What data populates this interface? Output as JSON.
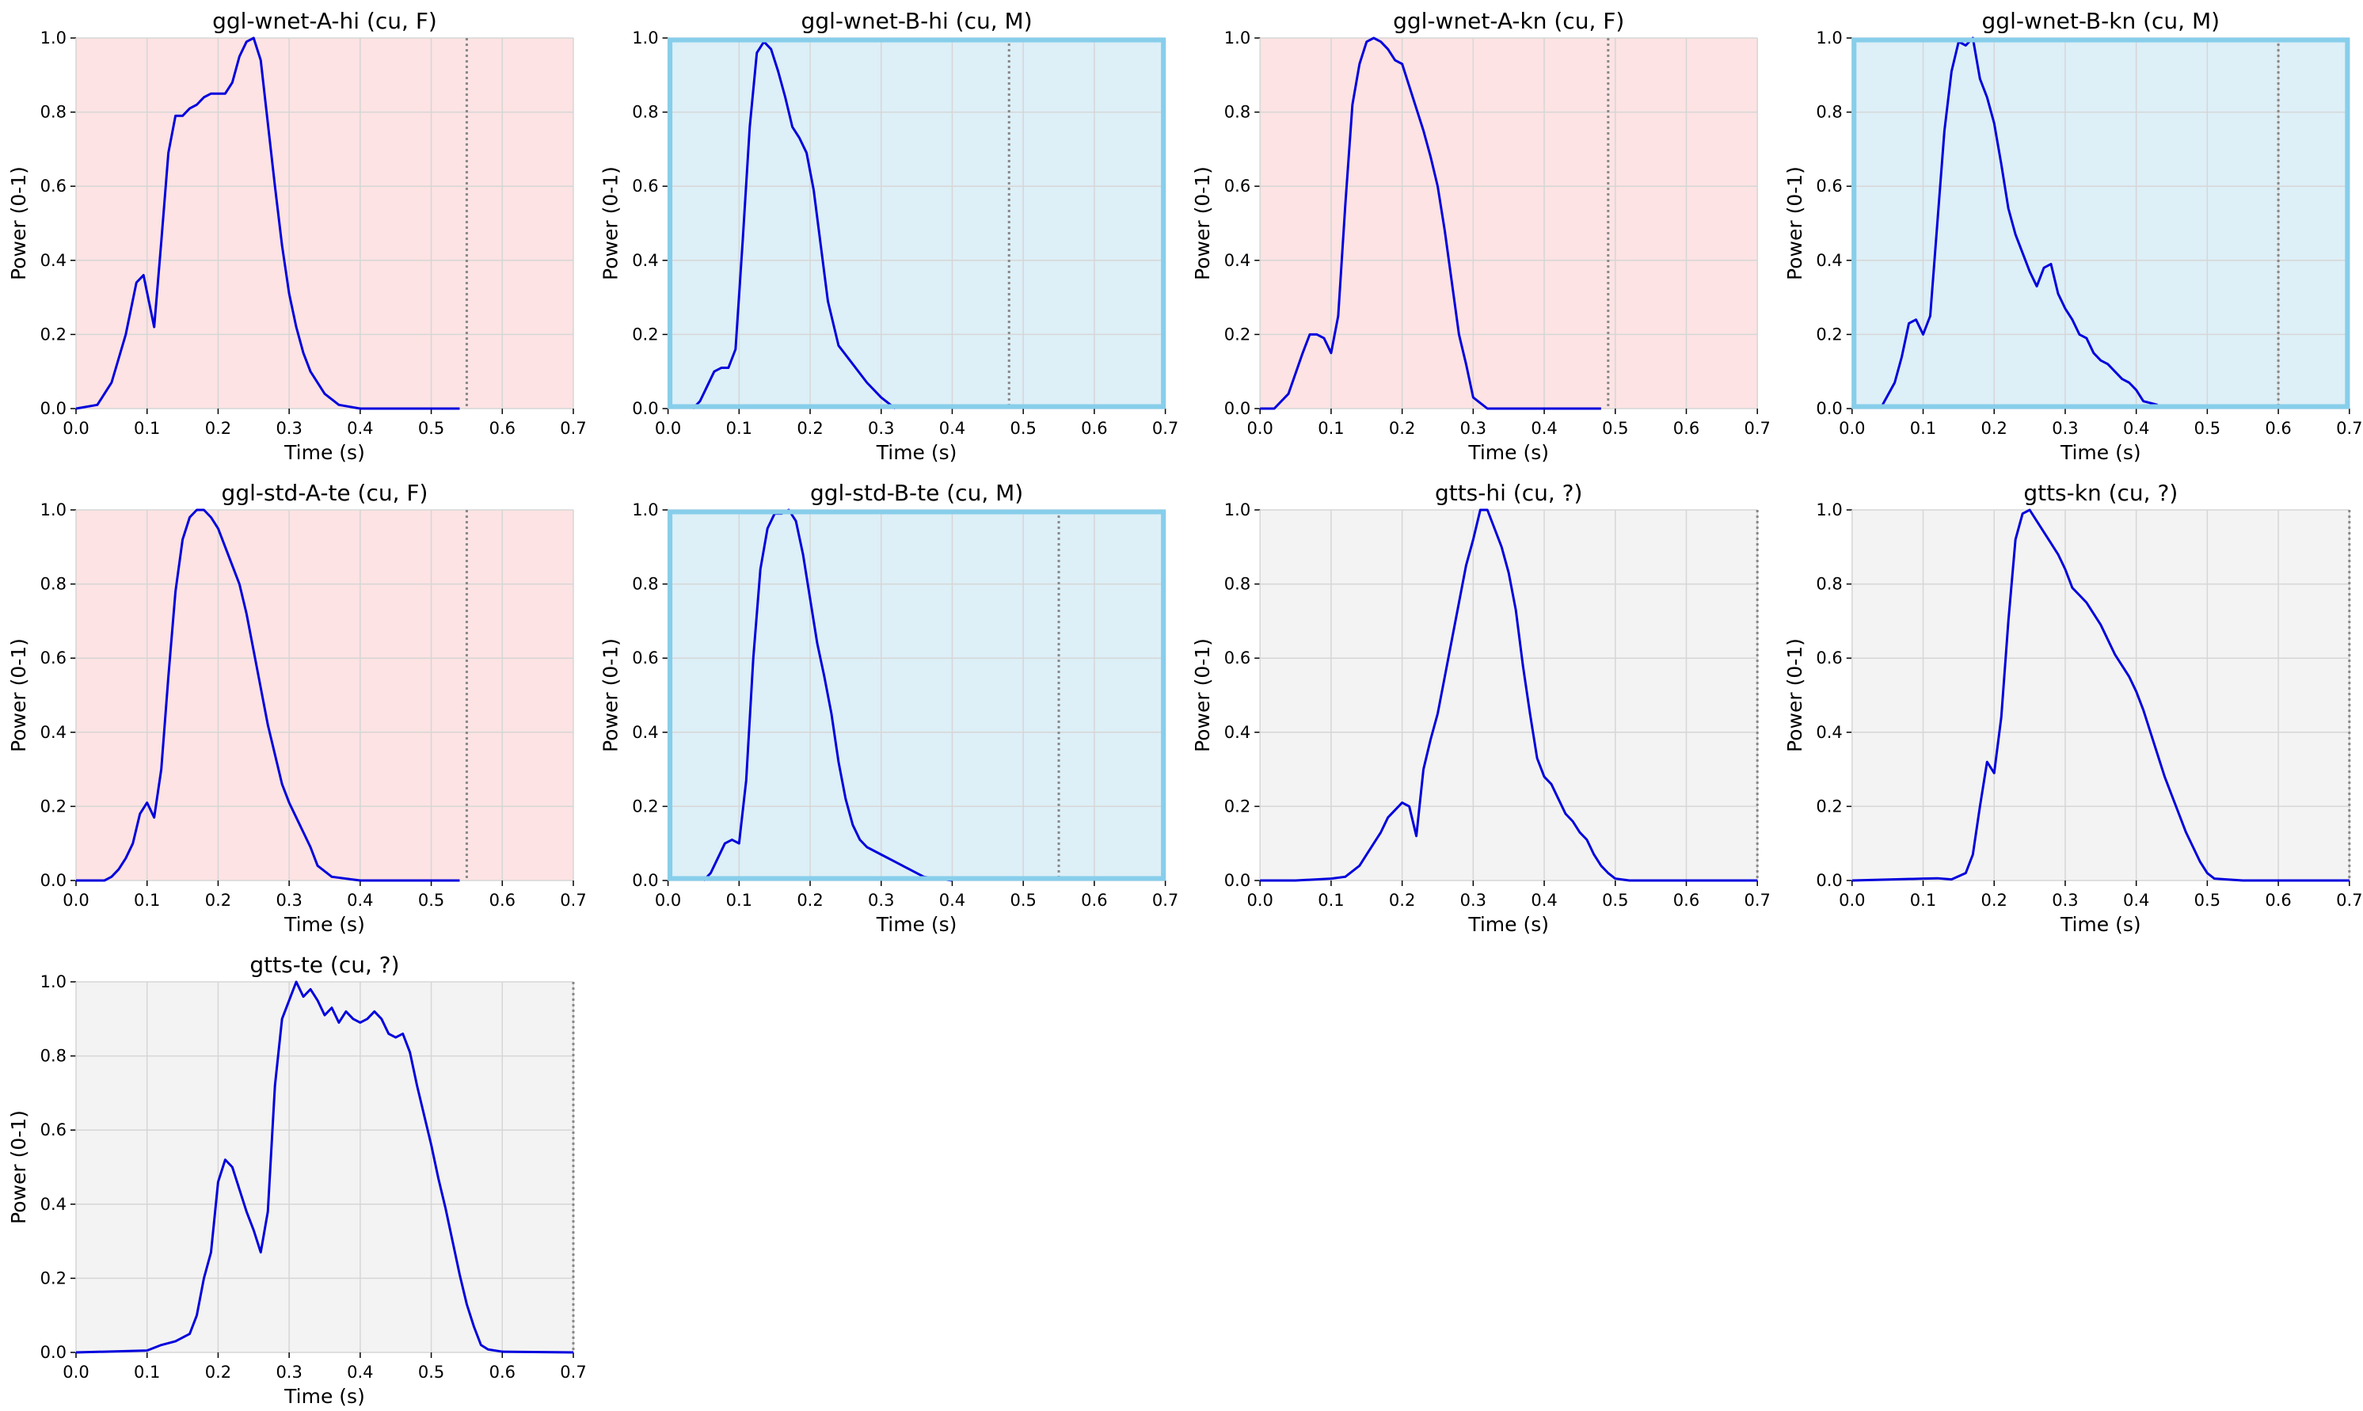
{
  "chart_data": [
    {
      "type": "line",
      "title": "ggl-wnet-A-hi (cu, F)",
      "xlabel": "Time (s)",
      "ylabel": "Power (0-1)",
      "background": "#fde3e3",
      "vline": 0.55,
      "grid": true,
      "xlim": [
        0,
        0.7
      ],
      "ylim": [
        0,
        1
      ],
      "xticks": [
        {
          "value": 0,
          "label": "0.0"
        },
        0.1,
        0.2,
        0.3,
        0.4,
        0.5,
        0.6,
        0.7
      ],
      "yticks": [
        {
          "value": 0,
          "label": "0.0"
        },
        0.2,
        0.4,
        0.6,
        0.8,
        {
          "value": 1,
          "label": "1.0"
        }
      ],
      "x": [
        0,
        0.03,
        0.05,
        0.07,
        0.085,
        0.095,
        0.11,
        0.12,
        0.13,
        0.14,
        0.15,
        0.16,
        0.17,
        0.18,
        0.19,
        0.2,
        0.21,
        0.22,
        0.23,
        0.24,
        0.25,
        0.26,
        0.27,
        0.28,
        0.29,
        0.3,
        0.31,
        0.32,
        0.33,
        0.35,
        0.37,
        0.4,
        0.45,
        0.54
      ],
      "series": [
        {
          "color": "#0000dd",
          "values": [
            0,
            0.01,
            0.07,
            0.2,
            0.34,
            0.36,
            0.22,
            0.45,
            0.69,
            0.79,
            0.79,
            0.81,
            0.82,
            0.84,
            0.85,
            0.85,
            0.85,
            0.88,
            0.95,
            0.99,
            1.0,
            0.94,
            0.77,
            0.6,
            0.44,
            0.31,
            0.22,
            0.15,
            0.1,
            0.04,
            0.01,
            0,
            0,
            0
          ]
        }
      ]
    },
    {
      "type": "line",
      "title": "ggl-wnet-B-hi (cu, M)",
      "xlabel": "Time (s)",
      "ylabel": "Power (0-1)",
      "background": "#ddeff7",
      "border": "#87ceeb",
      "vline": 0.48,
      "grid": true,
      "xlim": [
        0,
        0.7
      ],
      "ylim": [
        0,
        1
      ],
      "xticks": [
        {
          "value": 0,
          "label": "0.0"
        },
        0.1,
        0.2,
        0.3,
        0.4,
        0.5,
        0.6,
        0.7
      ],
      "yticks": [
        {
          "value": 0,
          "label": "0.0"
        },
        0.2,
        0.4,
        0.6,
        0.8,
        {
          "value": 1,
          "label": "1.0"
        }
      ],
      "x": [
        0.035,
        0.045,
        0.055,
        0.065,
        0.075,
        0.085,
        0.095,
        0.105,
        0.115,
        0.125,
        0.135,
        0.145,
        0.155,
        0.165,
        0.175,
        0.185,
        0.195,
        0.205,
        0.215,
        0.225,
        0.24,
        0.26,
        0.28,
        0.3,
        0.32
      ],
      "series": [
        {
          "color": "#0000dd",
          "values": [
            0,
            0.02,
            0.06,
            0.1,
            0.11,
            0.11,
            0.16,
            0.45,
            0.76,
            0.96,
            0.99,
            0.97,
            0.91,
            0.84,
            0.76,
            0.73,
            0.69,
            0.59,
            0.44,
            0.29,
            0.17,
            0.12,
            0.07,
            0.03,
            0
          ]
        }
      ]
    },
    {
      "type": "line",
      "title": "ggl-wnet-A-kn (cu, F)",
      "xlabel": "Time (s)",
      "ylabel": "Power (0-1)",
      "background": "#fde3e3",
      "vline": 0.49,
      "grid": true,
      "xlim": [
        0,
        0.7
      ],
      "ylim": [
        0,
        1
      ],
      "xticks": [
        {
          "value": 0,
          "label": "0.0"
        },
        0.1,
        0.2,
        0.3,
        0.4,
        0.5,
        0.6,
        0.7
      ],
      "yticks": [
        {
          "value": 0,
          "label": "0.0"
        },
        0.2,
        0.4,
        0.6,
        0.8,
        {
          "value": 1,
          "label": "1.0"
        }
      ],
      "x": [
        0,
        0.02,
        0.04,
        0.06,
        0.07,
        0.08,
        0.09,
        0.1,
        0.11,
        0.12,
        0.13,
        0.14,
        0.15,
        0.16,
        0.17,
        0.18,
        0.19,
        0.2,
        0.21,
        0.22,
        0.23,
        0.24,
        0.25,
        0.26,
        0.27,
        0.28,
        0.29,
        0.3,
        0.32,
        0.35,
        0.48
      ],
      "series": [
        {
          "color": "#0000dd",
          "values": [
            0,
            0,
            0.04,
            0.15,
            0.2,
            0.2,
            0.19,
            0.15,
            0.25,
            0.55,
            0.82,
            0.93,
            0.99,
            1.0,
            0.99,
            0.97,
            0.94,
            0.93,
            0.87,
            0.81,
            0.75,
            0.68,
            0.6,
            0.48,
            0.34,
            0.2,
            0.12,
            0.03,
            0,
            0,
            0
          ]
        }
      ]
    },
    {
      "type": "line",
      "title": "ggl-wnet-B-kn (cu, M)",
      "xlabel": "Time (s)",
      "ylabel": "Power (0-1)",
      "background": "#ddeff7",
      "border": "#87ceeb",
      "vline": 0.6,
      "grid": true,
      "xlim": [
        0,
        0.7
      ],
      "ylim": [
        0,
        1
      ],
      "xticks": [
        {
          "value": 0,
          "label": "0.0"
        },
        0.1,
        0.2,
        0.3,
        0.4,
        0.5,
        0.6,
        0.7
      ],
      "yticks": [
        {
          "value": 0,
          "label": "0.0"
        },
        0.2,
        0.4,
        0.6,
        0.8,
        {
          "value": 1,
          "label": "1.0"
        }
      ],
      "x": [
        0.04,
        0.06,
        0.07,
        0.08,
        0.09,
        0.1,
        0.11,
        0.12,
        0.13,
        0.14,
        0.15,
        0.16,
        0.17,
        0.18,
        0.19,
        0.2,
        0.21,
        0.22,
        0.23,
        0.24,
        0.25,
        0.26,
        0.27,
        0.28,
        0.29,
        0.3,
        0.31,
        0.32,
        0.33,
        0.34,
        0.35,
        0.36,
        0.37,
        0.38,
        0.39,
        0.4,
        0.41,
        0.43
      ],
      "series": [
        {
          "color": "#0000dd",
          "values": [
            0,
            0.07,
            0.14,
            0.23,
            0.24,
            0.2,
            0.25,
            0.5,
            0.75,
            0.91,
            0.99,
            0.98,
            1.0,
            0.89,
            0.84,
            0.77,
            0.66,
            0.54,
            0.47,
            0.42,
            0.37,
            0.33,
            0.38,
            0.39,
            0.31,
            0.27,
            0.24,
            0.2,
            0.19,
            0.15,
            0.13,
            0.12,
            0.1,
            0.08,
            0.07,
            0.05,
            0.02,
            0.01
          ]
        }
      ]
    },
    {
      "type": "line",
      "title": "ggl-std-A-te (cu, F)",
      "xlabel": "Time (s)",
      "ylabel": "Power (0-1)",
      "background": "#fde3e3",
      "vline": 0.55,
      "grid": true,
      "xlim": [
        0,
        0.7
      ],
      "ylim": [
        0,
        1
      ],
      "xticks": [
        {
          "value": 0,
          "label": "0.0"
        },
        0.1,
        0.2,
        0.3,
        0.4,
        0.5,
        0.6,
        0.7
      ],
      "yticks": [
        {
          "value": 0,
          "label": "0.0"
        },
        0.2,
        0.4,
        0.6,
        0.8,
        {
          "value": 1,
          "label": "1.0"
        }
      ],
      "x": [
        0,
        0.04,
        0.05,
        0.06,
        0.07,
        0.08,
        0.09,
        0.1,
        0.11,
        0.12,
        0.13,
        0.14,
        0.15,
        0.16,
        0.17,
        0.18,
        0.19,
        0.2,
        0.21,
        0.22,
        0.23,
        0.24,
        0.25,
        0.26,
        0.27,
        0.28,
        0.29,
        0.3,
        0.31,
        0.32,
        0.33,
        0.34,
        0.36,
        0.4,
        0.54
      ],
      "series": [
        {
          "color": "#0000dd",
          "values": [
            0,
            0,
            0.01,
            0.03,
            0.06,
            0.1,
            0.18,
            0.21,
            0.17,
            0.3,
            0.55,
            0.78,
            0.92,
            0.98,
            1.0,
            1.0,
            0.98,
            0.95,
            0.9,
            0.85,
            0.8,
            0.72,
            0.62,
            0.52,
            0.42,
            0.34,
            0.26,
            0.21,
            0.17,
            0.13,
            0.09,
            0.04,
            0.01,
            0,
            0
          ]
        }
      ]
    },
    {
      "type": "line",
      "title": "ggl-std-B-te (cu, M)",
      "xlabel": "Time (s)",
      "ylabel": "Power (0-1)",
      "background": "#ddeff7",
      "border": "#87ceeb",
      "vline": 0.55,
      "grid": true,
      "xlim": [
        0,
        0.7
      ],
      "ylim": [
        0,
        1
      ],
      "xticks": [
        {
          "value": 0,
          "label": "0.0"
        },
        0.1,
        0.2,
        0.3,
        0.4,
        0.5,
        0.6,
        0.7
      ],
      "yticks": [
        {
          "value": 0,
          "label": "0.0"
        },
        0.2,
        0.4,
        0.6,
        0.8,
        {
          "value": 1,
          "label": "1.0"
        }
      ],
      "x": [
        0.05,
        0.06,
        0.07,
        0.08,
        0.09,
        0.1,
        0.11,
        0.12,
        0.13,
        0.14,
        0.15,
        0.16,
        0.17,
        0.18,
        0.19,
        0.2,
        0.21,
        0.22,
        0.23,
        0.24,
        0.25,
        0.26,
        0.27,
        0.28,
        0.3,
        0.32,
        0.34,
        0.36,
        0.38,
        0.4
      ],
      "series": [
        {
          "color": "#0000dd",
          "values": [
            0,
            0.02,
            0.06,
            0.1,
            0.11,
            0.1,
            0.27,
            0.6,
            0.84,
            0.95,
            0.99,
            0.99,
            1.0,
            0.97,
            0.88,
            0.76,
            0.64,
            0.55,
            0.45,
            0.32,
            0.22,
            0.15,
            0.11,
            0.09,
            0.07,
            0.05,
            0.03,
            0.01,
            0.005,
            0
          ]
        }
      ]
    },
    {
      "type": "line",
      "title": "gtts-hi (cu, ?)",
      "xlabel": "Time (s)",
      "ylabel": "Power (0-1)",
      "background": "#f3f3f3",
      "vline": 0.7,
      "grid": true,
      "xlim": [
        0,
        0.7
      ],
      "ylim": [
        0,
        1
      ],
      "xticks": [
        {
          "value": 0,
          "label": "0.0"
        },
        0.1,
        0.2,
        0.3,
        0.4,
        0.5,
        0.6,
        0.7
      ],
      "yticks": [
        {
          "value": 0,
          "label": "0.0"
        },
        0.2,
        0.4,
        0.6,
        0.8,
        {
          "value": 1,
          "label": "1.0"
        }
      ],
      "x": [
        0,
        0.05,
        0.1,
        0.12,
        0.14,
        0.15,
        0.16,
        0.17,
        0.18,
        0.19,
        0.2,
        0.21,
        0.22,
        0.23,
        0.24,
        0.25,
        0.26,
        0.27,
        0.28,
        0.29,
        0.3,
        0.31,
        0.32,
        0.33,
        0.34,
        0.35,
        0.36,
        0.37,
        0.38,
        0.39,
        0.4,
        0.41,
        0.42,
        0.43,
        0.44,
        0.45,
        0.46,
        0.47,
        0.48,
        0.49,
        0.5,
        0.52,
        0.6,
        0.7
      ],
      "series": [
        {
          "color": "#0000dd",
          "values": [
            0,
            0,
            0.005,
            0.01,
            0.04,
            0.07,
            0.1,
            0.13,
            0.17,
            0.19,
            0.21,
            0.2,
            0.12,
            0.3,
            0.38,
            0.45,
            0.55,
            0.65,
            0.75,
            0.85,
            0.92,
            1.0,
            1.0,
            0.95,
            0.9,
            0.83,
            0.73,
            0.58,
            0.45,
            0.33,
            0.28,
            0.26,
            0.22,
            0.18,
            0.16,
            0.13,
            0.11,
            0.07,
            0.04,
            0.02,
            0.005,
            0,
            0,
            0
          ]
        }
      ]
    },
    {
      "type": "line",
      "title": "gtts-kn (cu, ?)",
      "xlabel": "Time (s)",
      "ylabel": "Power (0-1)",
      "background": "#f3f3f3",
      "vline": 0.7,
      "grid": true,
      "xlim": [
        0,
        0.7
      ],
      "ylim": [
        0,
        1
      ],
      "xticks": [
        {
          "value": 0,
          "label": "0.0"
        },
        0.1,
        0.2,
        0.3,
        0.4,
        0.5,
        0.6,
        0.7
      ],
      "yticks": [
        {
          "value": 0,
          "label": "0.0"
        },
        0.2,
        0.4,
        0.6,
        0.8,
        {
          "value": 1,
          "label": "1.0"
        }
      ],
      "x": [
        0,
        0.1,
        0.12,
        0.14,
        0.16,
        0.17,
        0.18,
        0.19,
        0.2,
        0.21,
        0.22,
        0.23,
        0.24,
        0.25,
        0.26,
        0.27,
        0.28,
        0.29,
        0.3,
        0.31,
        0.32,
        0.33,
        0.34,
        0.35,
        0.36,
        0.37,
        0.38,
        0.39,
        0.4,
        0.41,
        0.42,
        0.43,
        0.44,
        0.45,
        0.46,
        0.47,
        0.48,
        0.49,
        0.5,
        0.51,
        0.55,
        0.7
      ],
      "series": [
        {
          "color": "#0000dd",
          "values": [
            0,
            0.005,
            0.006,
            0.003,
            0.02,
            0.07,
            0.2,
            0.32,
            0.29,
            0.44,
            0.7,
            0.92,
            0.99,
            1.0,
            0.97,
            0.94,
            0.91,
            0.88,
            0.84,
            0.79,
            0.77,
            0.75,
            0.72,
            0.69,
            0.65,
            0.61,
            0.58,
            0.55,
            0.51,
            0.46,
            0.4,
            0.34,
            0.28,
            0.23,
            0.18,
            0.13,
            0.09,
            0.05,
            0.02,
            0.005,
            0,
            0
          ]
        }
      ]
    },
    {
      "type": "line",
      "title": "gtts-te (cu, ?)",
      "xlabel": "Time (s)",
      "ylabel": "Power (0-1)",
      "background": "#f3f3f3",
      "vline": 0.7,
      "grid": true,
      "xlim": [
        0,
        0.7
      ],
      "ylim": [
        0,
        1
      ],
      "xticks": [
        {
          "value": 0,
          "label": "0.0"
        },
        0.1,
        0.2,
        0.3,
        0.4,
        0.5,
        0.6,
        0.7
      ],
      "yticks": [
        {
          "value": 0,
          "label": "0.0"
        },
        0.2,
        0.4,
        0.6,
        0.8,
        {
          "value": 1,
          "label": "1.0"
        }
      ],
      "x": [
        0,
        0.1,
        0.12,
        0.14,
        0.16,
        0.17,
        0.18,
        0.19,
        0.2,
        0.21,
        0.22,
        0.23,
        0.24,
        0.25,
        0.26,
        0.27,
        0.28,
        0.29,
        0.3,
        0.31,
        0.32,
        0.33,
        0.34,
        0.35,
        0.36,
        0.37,
        0.38,
        0.39,
        0.4,
        0.41,
        0.42,
        0.43,
        0.44,
        0.45,
        0.46,
        0.47,
        0.48,
        0.49,
        0.5,
        0.51,
        0.52,
        0.53,
        0.54,
        0.55,
        0.56,
        0.57,
        0.58,
        0.6,
        0.7
      ],
      "series": [
        {
          "color": "#0000dd",
          "values": [
            0,
            0.005,
            0.02,
            0.03,
            0.05,
            0.1,
            0.2,
            0.27,
            0.46,
            0.52,
            0.5,
            0.44,
            0.38,
            0.33,
            0.27,
            0.38,
            0.72,
            0.9,
            0.95,
            1.0,
            0.96,
            0.98,
            0.95,
            0.91,
            0.93,
            0.89,
            0.92,
            0.9,
            0.89,
            0.9,
            0.92,
            0.9,
            0.86,
            0.85,
            0.86,
            0.81,
            0.72,
            0.64,
            0.56,
            0.47,
            0.39,
            0.3,
            0.21,
            0.13,
            0.07,
            0.02,
            0.008,
            0.002,
            0
          ]
        }
      ]
    }
  ]
}
